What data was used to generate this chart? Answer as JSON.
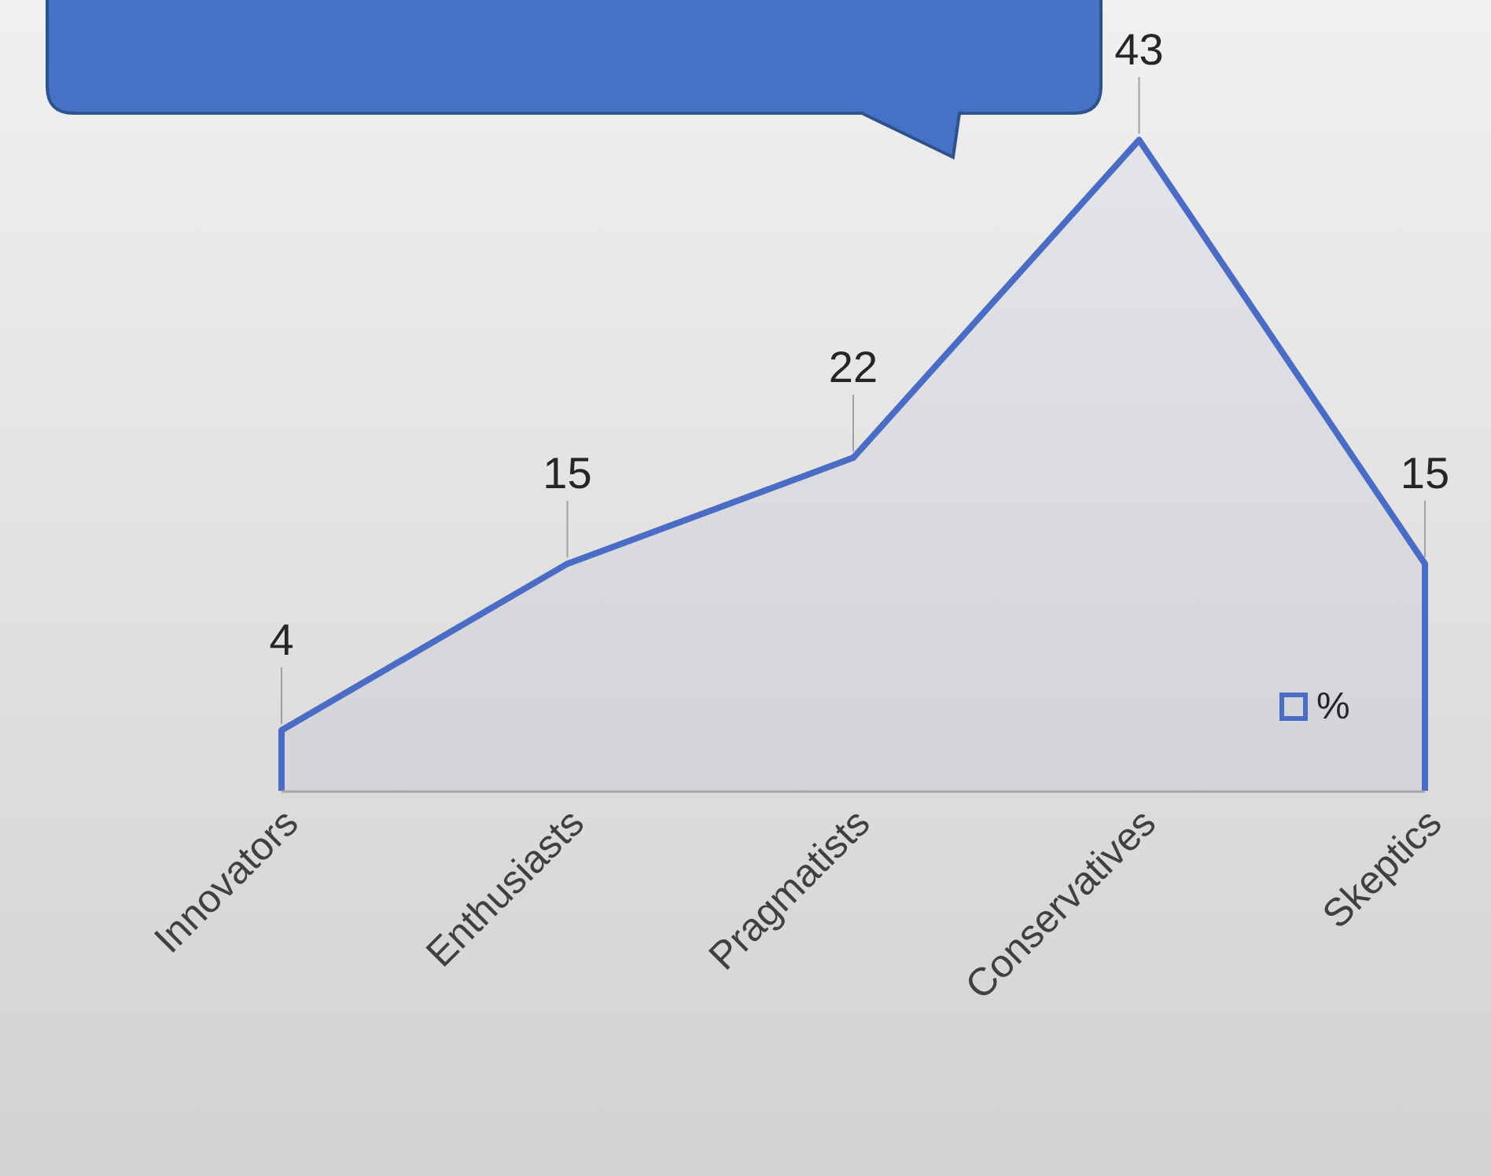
{
  "chart_data": {
    "type": "area",
    "categories": [
      "Innovators",
      "Enthusiasts",
      "Pragmatists",
      "Conservatives",
      "Skeptics"
    ],
    "series": [
      {
        "name": "%",
        "color": "#4a6cc4",
        "values": [
          4,
          15,
          22,
          43,
          15
        ]
      }
    ],
    "data_labels": true,
    "legend": "bottom right",
    "grid": false
  }
}
